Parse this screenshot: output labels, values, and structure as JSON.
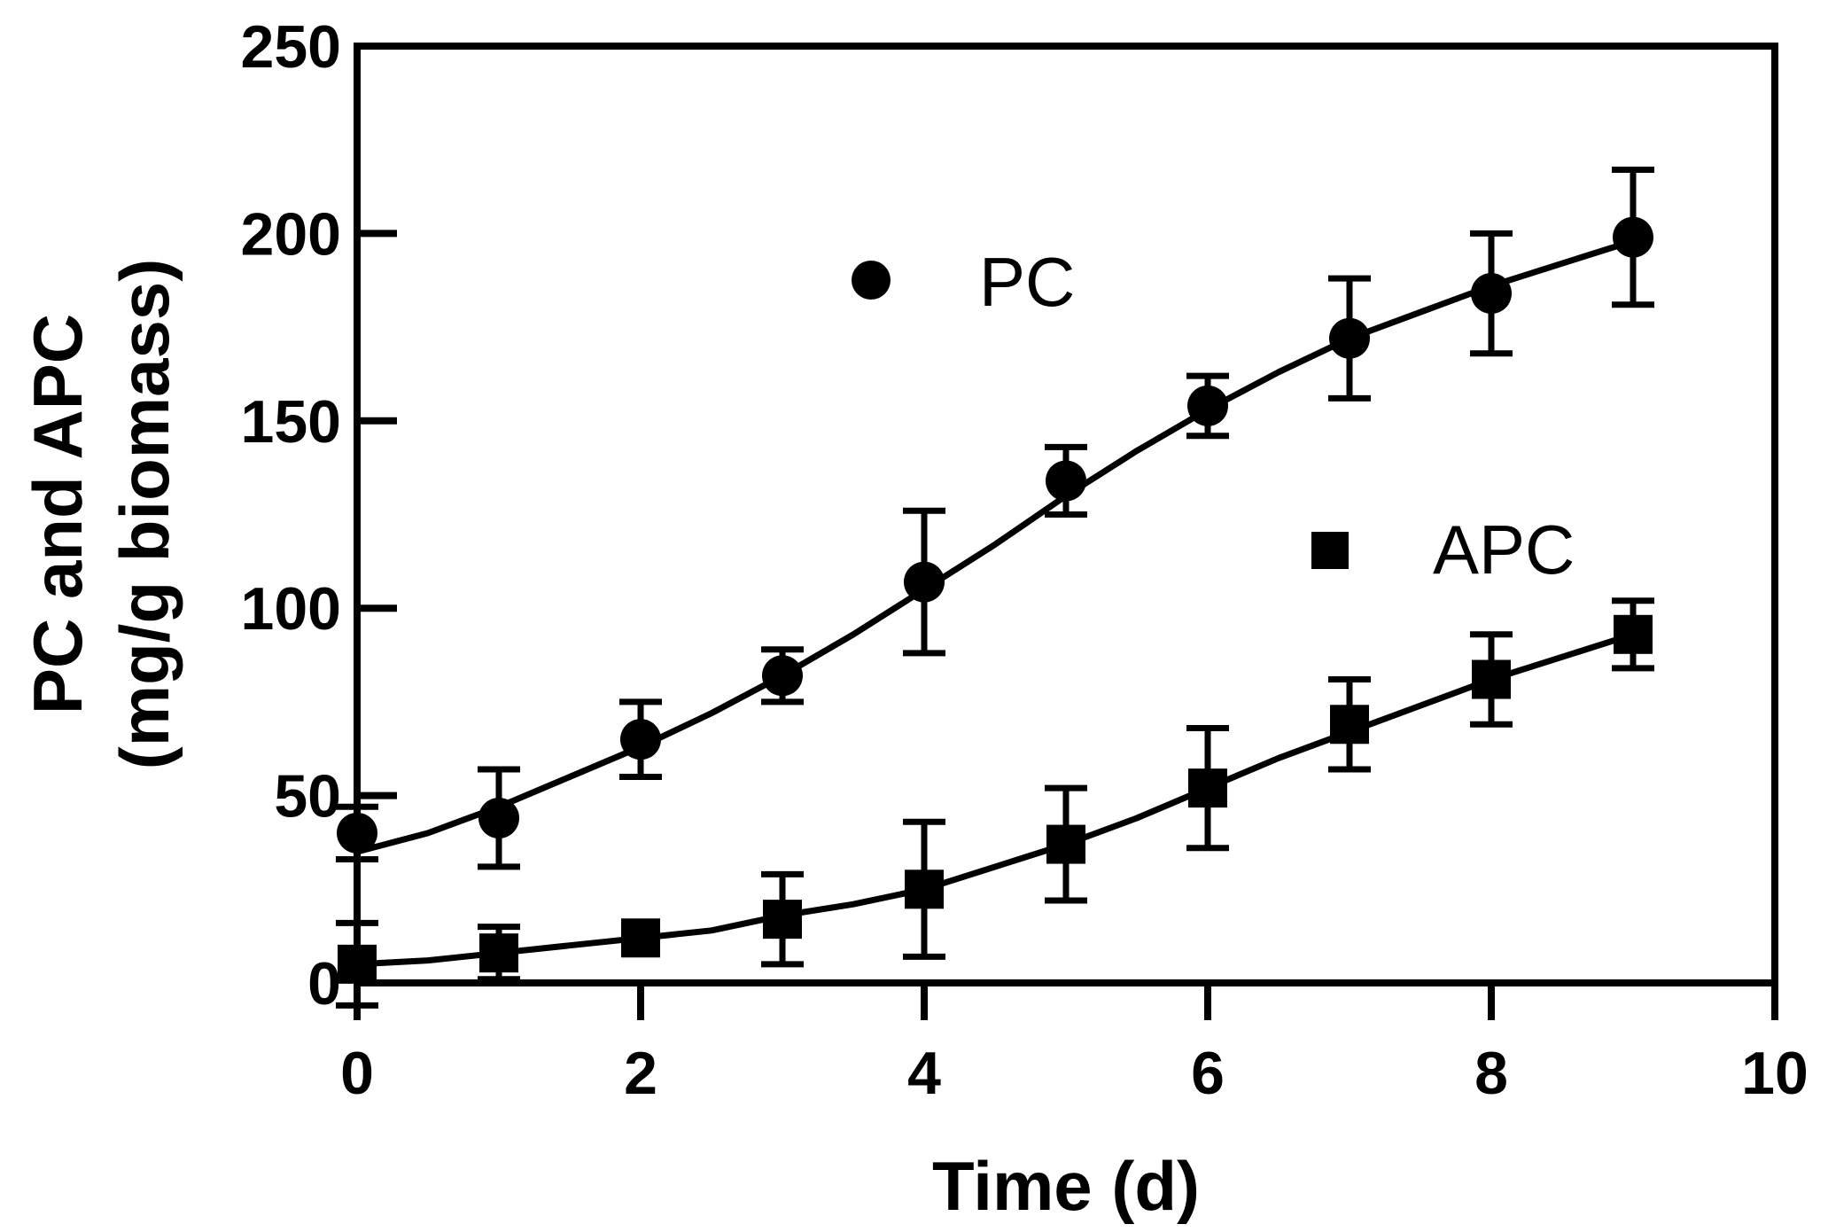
{
  "chart_data": {
    "type": "scatter",
    "title": "",
    "xlabel": "Time (d)",
    "ylabel_line1": "PC and APC",
    "ylabel_line2": "(mg/g biomass)",
    "xlim": [
      0,
      10
    ],
    "ylim": [
      0,
      250
    ],
    "x_ticks": [
      0,
      2,
      4,
      6,
      8,
      10
    ],
    "x_tick_labels": [
      "0",
      "2",
      "4",
      "6",
      "8",
      "10"
    ],
    "y_ticks": [
      0,
      50,
      100,
      150,
      200,
      250
    ],
    "y_tick_labels": [
      "0",
      "50",
      "100",
      "150",
      "200",
      "250"
    ],
    "grid": false,
    "legend_position": "upper-middle",
    "series": [
      {
        "name": "PC",
        "marker": "circle",
        "color": "#000000",
        "x": [
          0,
          1,
          2,
          3,
          4,
          5,
          6,
          7,
          8,
          9
        ],
        "y": [
          40,
          44,
          65,
          82,
          107,
          134,
          154,
          172,
          184,
          199
        ],
        "err": [
          7,
          13,
          10,
          7,
          19,
          9,
          8,
          16,
          16,
          18
        ],
        "fit": [
          [
            0,
            35
          ],
          [
            0.5,
            40
          ],
          [
            1,
            47
          ],
          [
            1.5,
            55
          ],
          [
            2,
            63
          ],
          [
            2.5,
            72
          ],
          [
            3,
            82
          ],
          [
            3.5,
            93
          ],
          [
            4,
            105
          ],
          [
            4.5,
            117
          ],
          [
            5,
            130
          ],
          [
            5.5,
            142
          ],
          [
            6,
            153
          ],
          [
            6.5,
            163
          ],
          [
            7,
            172
          ],
          [
            7.5,
            179
          ],
          [
            8,
            186
          ],
          [
            8.5,
            192
          ],
          [
            9,
            198
          ]
        ]
      },
      {
        "name": "APC",
        "marker": "square",
        "color": "#000000",
        "x": [
          0,
          1,
          2,
          3,
          4,
          5,
          6,
          7,
          8,
          9
        ],
        "y": [
          5,
          8,
          12,
          17,
          25,
          37,
          52,
          69,
          81,
          93
        ],
        "err": [
          11,
          7,
          0,
          12,
          18,
          15,
          16,
          12,
          12,
          9
        ],
        "fit": [
          [
            0,
            5
          ],
          [
            0.5,
            6
          ],
          [
            1,
            8
          ],
          [
            1.5,
            10
          ],
          [
            2,
            12
          ],
          [
            2.5,
            14
          ],
          [
            3,
            18
          ],
          [
            3.5,
            21
          ],
          [
            4,
            25
          ],
          [
            4.5,
            31
          ],
          [
            5,
            37
          ],
          [
            5.5,
            44
          ],
          [
            6,
            52
          ],
          [
            6.5,
            60
          ],
          [
            7,
            67
          ],
          [
            7.5,
            74
          ],
          [
            8,
            81
          ],
          [
            8.5,
            87
          ],
          [
            9,
            93
          ]
        ]
      }
    ]
  }
}
